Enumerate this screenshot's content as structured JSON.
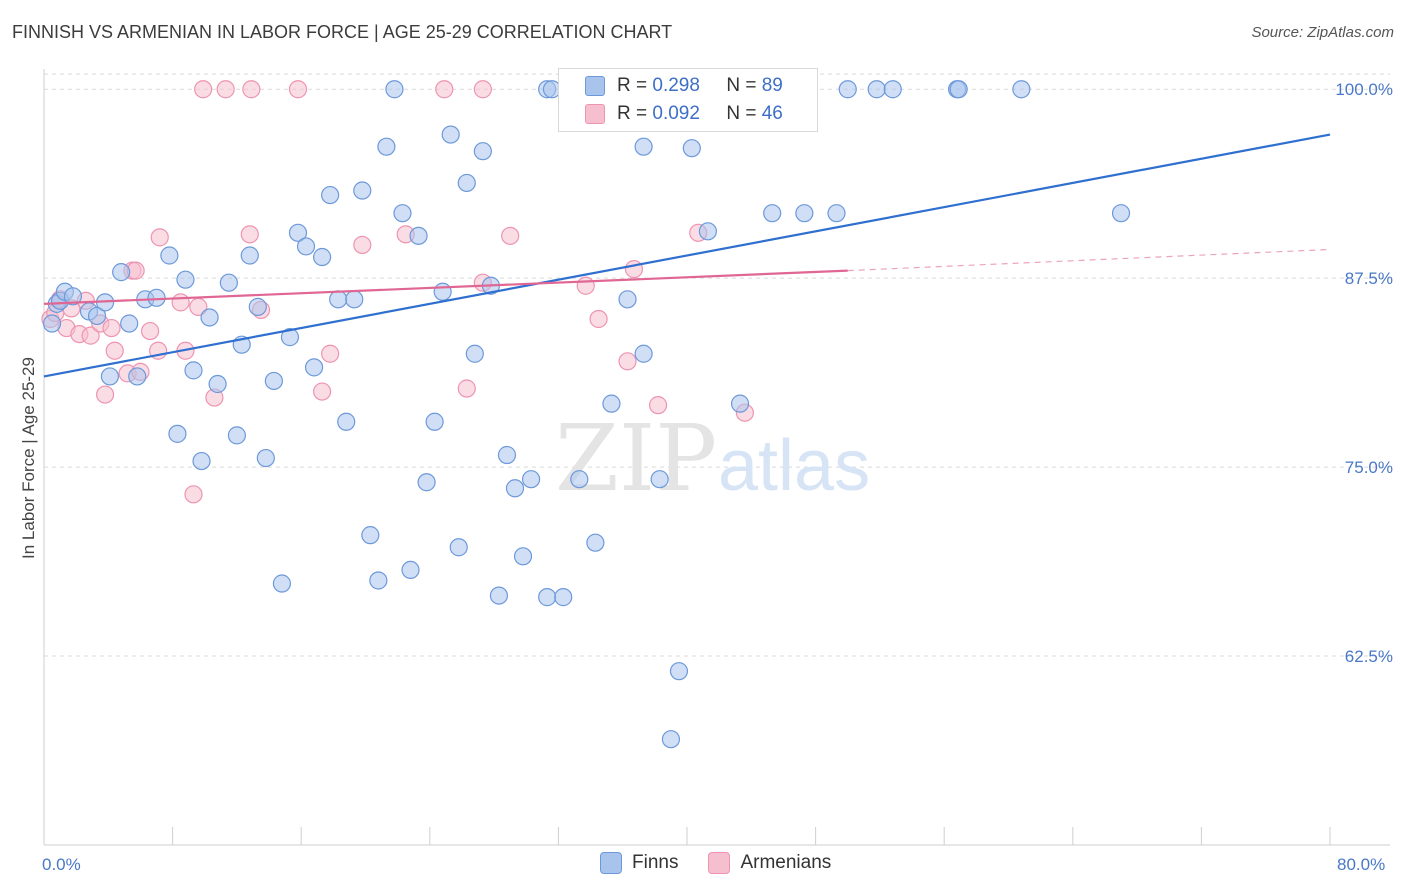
{
  "title": "FINNISH VS ARMENIAN IN LABOR FORCE | AGE 25-29 CORRELATION CHART",
  "source": "Source: ZipAtlas.com",
  "watermark": "ZIPatlas",
  "colors": {
    "finns_fill": "#a9c4ec",
    "finns_stroke": "#6d99da",
    "finns_line": "#2f6fcf",
    "armenians_fill": "#f6bfd0",
    "armenians_stroke": "#ee94b1",
    "armenians_line": "#e06693",
    "tick_text": "#4a78c8",
    "grid": "#d9d9d9"
  },
  "legend": {
    "finns": {
      "r_label": "R = ",
      "r_value": "0.298",
      "n_label": "N = ",
      "n_value": "89"
    },
    "armenians": {
      "r_label": "R = ",
      "r_value": "0.092",
      "n_label": "N = ",
      "n_value": "46"
    }
  },
  "bottom_legend": {
    "finns": "Finns",
    "armenians": "Armenians"
  },
  "chart_data": {
    "type": "scatter",
    "title": "FINNISH VS ARMENIAN IN LABOR FORCE | AGE 25-29 CORRELATION CHART",
    "xlabel": "",
    "ylabel": "In Labor Force | Age 25-29",
    "xlim": [
      0,
      80
    ],
    "ylim": [
      50,
      102
    ],
    "x_tick_labels": [
      "0.0%",
      "80.0%"
    ],
    "y_ticks": [
      62.5,
      75.0,
      87.5,
      100.0
    ],
    "y_tick_labels": [
      "62.5%",
      "75.0%",
      "87.5%",
      "100.0%"
    ],
    "series": [
      {
        "name": "Finns",
        "points": [
          [
            0.5,
            84.5
          ],
          [
            0.8,
            85.8
          ],
          [
            1.0,
            86.0
          ],
          [
            1.3,
            86.6
          ],
          [
            1.8,
            86.3
          ],
          [
            2.8,
            85.3
          ],
          [
            3.3,
            85.0
          ],
          [
            3.8,
            85.9
          ],
          [
            4.1,
            81.0
          ],
          [
            4.8,
            87.9
          ],
          [
            5.3,
            84.5
          ],
          [
            5.8,
            81.0
          ],
          [
            6.3,
            86.1
          ],
          [
            7.0,
            86.2
          ],
          [
            7.8,
            89.0
          ],
          [
            8.3,
            77.2
          ],
          [
            8.8,
            87.4
          ],
          [
            9.3,
            81.4
          ],
          [
            9.8,
            75.4
          ],
          [
            10.3,
            84.9
          ],
          [
            10.8,
            80.5
          ],
          [
            11.5,
            87.2
          ],
          [
            12.0,
            77.1
          ],
          [
            12.3,
            83.1
          ],
          [
            12.8,
            89.0
          ],
          [
            13.3,
            85.6
          ],
          [
            13.8,
            75.6
          ],
          [
            14.3,
            80.7
          ],
          [
            14.8,
            67.3
          ],
          [
            15.3,
            83.6
          ],
          [
            15.8,
            90.5
          ],
          [
            16.3,
            89.6
          ],
          [
            16.8,
            81.6
          ],
          [
            17.3,
            88.9
          ],
          [
            17.8,
            93.0
          ],
          [
            18.3,
            86.1
          ],
          [
            18.8,
            78.0
          ],
          [
            19.3,
            86.1
          ],
          [
            19.8,
            93.3
          ],
          [
            20.3,
            70.5
          ],
          [
            20.8,
            67.5
          ],
          [
            21.3,
            96.2
          ],
          [
            22.3,
            91.8
          ],
          [
            22.8,
            68.2
          ],
          [
            23.3,
            90.3
          ],
          [
            23.8,
            74.0
          ],
          [
            24.3,
            78.0
          ],
          [
            24.8,
            86.6
          ],
          [
            25.3,
            97.0
          ],
          [
            25.8,
            69.7
          ],
          [
            26.3,
            93.8
          ],
          [
            26.8,
            82.5
          ],
          [
            27.3,
            95.9
          ],
          [
            27.8,
            87.0
          ],
          [
            28.3,
            66.5
          ],
          [
            28.8,
            75.8
          ],
          [
            29.3,
            73.6
          ],
          [
            29.8,
            69.1
          ],
          [
            30.3,
            74.2
          ],
          [
            31.3,
            66.4
          ],
          [
            32.3,
            66.4
          ],
          [
            33.3,
            74.2
          ],
          [
            34.3,
            70.0
          ],
          [
            35.3,
            79.2
          ],
          [
            36.3,
            86.1
          ],
          [
            37.3,
            96.2
          ],
          [
            38.3,
            74.2
          ],
          [
            39.0,
            57.0
          ],
          [
            39.5,
            61.5
          ],
          [
            40.3,
            96.1
          ],
          [
            41.3,
            90.6
          ],
          [
            43.3,
            79.2
          ],
          [
            45.3,
            91.8
          ],
          [
            47.3,
            91.8
          ],
          [
            49.3,
            91.8
          ],
          [
            21.8,
            100.0
          ],
          [
            31.3,
            100.0
          ],
          [
            31.6,
            100.0
          ],
          [
            37.5,
            100.0
          ],
          [
            43.2,
            100.0
          ],
          [
            44.8,
            100.0
          ],
          [
            50.0,
            100.0
          ],
          [
            51.8,
            100.0
          ],
          [
            52.8,
            100.0
          ],
          [
            56.8,
            100.0
          ],
          [
            56.9,
            100.0
          ],
          [
            60.8,
            100.0
          ],
          [
            67.0,
            91.8
          ],
          [
            37.3,
            82.5
          ]
        ],
        "trend": {
          "x": [
            0,
            80
          ],
          "y": [
            81.0,
            97.0
          ]
        }
      },
      {
        "name": "Armenians",
        "points": [
          [
            0.4,
            84.8
          ],
          [
            0.7,
            85.2
          ],
          [
            1.0,
            86.1
          ],
          [
            1.4,
            84.2
          ],
          [
            1.7,
            85.5
          ],
          [
            2.2,
            83.8
          ],
          [
            2.6,
            86.0
          ],
          [
            2.9,
            83.7
          ],
          [
            3.5,
            84.5
          ],
          [
            3.8,
            79.8
          ],
          [
            4.2,
            84.2
          ],
          [
            4.4,
            82.7
          ],
          [
            5.2,
            81.2
          ],
          [
            5.5,
            88.0
          ],
          [
            6.0,
            81.3
          ],
          [
            6.6,
            84.0
          ],
          [
            7.1,
            82.7
          ],
          [
            7.2,
            90.2
          ],
          [
            8.5,
            85.9
          ],
          [
            8.8,
            82.7
          ],
          [
            9.3,
            73.2
          ],
          [
            9.6,
            85.6
          ],
          [
            10.6,
            79.6
          ],
          [
            12.8,
            90.4
          ],
          [
            13.5,
            85.4
          ],
          [
            17.3,
            80.0
          ],
          [
            17.8,
            82.5
          ],
          [
            19.8,
            89.7
          ],
          [
            22.5,
            90.4
          ],
          [
            26.3,
            80.2
          ],
          [
            27.3,
            87.2
          ],
          [
            29.0,
            90.3
          ],
          [
            33.7,
            87.0
          ],
          [
            34.5,
            84.8
          ],
          [
            36.3,
            82.0
          ],
          [
            36.7,
            88.1
          ],
          [
            38.2,
            79.1
          ],
          [
            40.7,
            90.5
          ],
          [
            43.6,
            78.6
          ],
          [
            9.9,
            100.0
          ],
          [
            11.3,
            100.0
          ],
          [
            12.9,
            100.0
          ],
          [
            15.8,
            100.0
          ],
          [
            24.9,
            100.0
          ],
          [
            27.3,
            100.0
          ],
          [
            5.7,
            88.0
          ]
        ],
        "trend": {
          "x": [
            0,
            50
          ],
          "y": [
            85.8,
            88.0
          ]
        },
        "trend_dashed": {
          "x": [
            50,
            80
          ],
          "y": [
            88.0,
            89.4
          ]
        }
      }
    ]
  }
}
